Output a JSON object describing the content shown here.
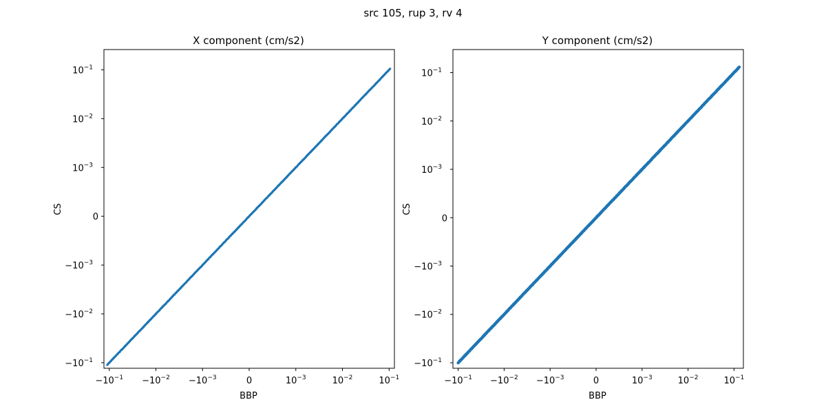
{
  "figure": {
    "suptitle": "src 105, rup 3, rv 4"
  },
  "series_color": "#1f77b4",
  "chart_data": [
    {
      "type": "scatter",
      "title": "X component (cm/s2)",
      "xlabel": "BBP",
      "ylabel": "CS",
      "xscale": "symlog",
      "yscale": "symlog",
      "linthresh": 0.001,
      "xlim": [
        -0.13,
        0.13
      ],
      "ylim": [
        -0.13,
        0.26
      ],
      "xticks": [
        {
          "value": -0.1,
          "base": "−10",
          "exp": "−1"
        },
        {
          "value": -0.01,
          "base": "−10",
          "exp": "−2"
        },
        {
          "value": -0.001,
          "base": "−10",
          "exp": "−3"
        },
        {
          "value": 0,
          "base": "0",
          "exp": ""
        },
        {
          "value": 0.001,
          "base": "10",
          "exp": "−3"
        },
        {
          "value": 0.01,
          "base": "10",
          "exp": "−2"
        },
        {
          "value": 0.1,
          "base": "10",
          "exp": "−1"
        }
      ],
      "yticks": [
        {
          "value": -0.1,
          "base": "−10",
          "exp": "−1"
        },
        {
          "value": -0.01,
          "base": "−10",
          "exp": "−2"
        },
        {
          "value": -0.001,
          "base": "−10",
          "exp": "−3"
        },
        {
          "value": 0,
          "base": "0",
          "exp": ""
        },
        {
          "value": 0.001,
          "base": "10",
          "exp": "−3"
        },
        {
          "value": 0.01,
          "base": "10",
          "exp": "−2"
        },
        {
          "value": 0.1,
          "base": "10",
          "exp": "−1"
        }
      ],
      "series": [
        {
          "x_range": [
            -0.11,
            0.105
          ],
          "relation": "y = x"
        }
      ],
      "grid": false
    },
    {
      "type": "scatter",
      "title": "Y component (cm/s2)",
      "xlabel": "BBP",
      "ylabel": "CS",
      "xscale": "symlog",
      "yscale": "symlog",
      "linthresh": 0.001,
      "xlim": [
        -0.13,
        0.16
      ],
      "ylim": [
        -0.13,
        0.3
      ],
      "xticks": [
        {
          "value": -0.1,
          "base": "−10",
          "exp": "−1"
        },
        {
          "value": -0.01,
          "base": "−10",
          "exp": "−2"
        },
        {
          "value": -0.001,
          "base": "−10",
          "exp": "−3"
        },
        {
          "value": 0,
          "base": "0",
          "exp": ""
        },
        {
          "value": 0.001,
          "base": "10",
          "exp": "−3"
        },
        {
          "value": 0.01,
          "base": "10",
          "exp": "−2"
        },
        {
          "value": 0.1,
          "base": "10",
          "exp": "−1"
        }
      ],
      "yticks": [
        {
          "value": -0.1,
          "base": "−10",
          "exp": "−1"
        },
        {
          "value": -0.01,
          "base": "−10",
          "exp": "−2"
        },
        {
          "value": -0.001,
          "base": "−10",
          "exp": "−3"
        },
        {
          "value": 0,
          "base": "0",
          "exp": ""
        },
        {
          "value": 0.001,
          "base": "10",
          "exp": "−3"
        },
        {
          "value": 0.01,
          "base": "10",
          "exp": "−2"
        },
        {
          "value": 0.1,
          "base": "10",
          "exp": "−1"
        }
      ],
      "series": [
        {
          "x_range": [
            -0.1,
            0.13
          ],
          "relation": "y = x"
        }
      ],
      "grid": false
    }
  ]
}
